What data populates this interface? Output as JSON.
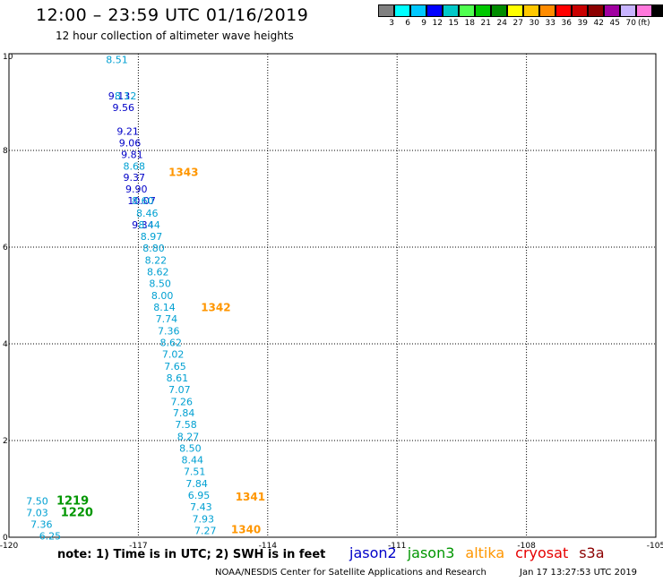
{
  "header": {
    "title": "12:00 – 23:59 UTC 01/16/2019",
    "subtitle": "12 hour collection of altimeter wave heights"
  },
  "legend": {
    "colors": [
      "#808080",
      "#00ffff",
      "#00c8ff",
      "#0000ff",
      "#00c8c8",
      "#50ff50",
      "#00c800",
      "#008c00",
      "#ffff00",
      "#ffc800",
      "#ff8c00",
      "#ff0000",
      "#c80000",
      "#8c0000",
      "#a000a0",
      "#c8b4ff",
      "#ff78dc",
      "#000000"
    ],
    "labels": [
      "3",
      "6",
      "9",
      "12",
      "15",
      "18",
      "21",
      "24",
      "27",
      "30",
      "33",
      "36",
      "39",
      "42",
      "45",
      "70",
      "(ft)"
    ]
  },
  "chart_data": {
    "type": "scatter",
    "xlim": [
      -120,
      -105
    ],
    "ylim": [
      0,
      10
    ],
    "x_ticks": [
      "-120",
      "-117",
      "-114",
      "-111",
      "-108",
      "-105"
    ],
    "y_ticks": [
      "0",
      "2",
      "4",
      "6",
      "8",
      "10"
    ],
    "grid": true,
    "series": [
      {
        "name": "jason2",
        "color": "#0000c8",
        "points": [
          {
            "x": -117.7,
            "y": 9.13,
            "label": "9.13"
          },
          {
            "x": -117.6,
            "y": 8.89,
            "label": "9.56"
          },
          {
            "x": -117.5,
            "y": 8.4,
            "label": "9.21"
          },
          {
            "x": -117.45,
            "y": 8.16,
            "label": "9.06"
          },
          {
            "x": -117.4,
            "y": 7.92,
            "label": "9.81"
          },
          {
            "x": -117.35,
            "y": 7.44,
            "label": "9.37"
          },
          {
            "x": -117.3,
            "y": 7.2,
            "label": "9.90"
          },
          {
            "x": -117.25,
            "y": 6.96,
            "label": "10.07"
          },
          {
            "x": -117.15,
            "y": 6.46,
            "label": "9.34"
          }
        ]
      },
      {
        "name": "jason3",
        "color": "#009600",
        "points": [
          {
            "x": -118.9,
            "y": 0.75,
            "label": "1219"
          },
          {
            "x": -118.8,
            "y": 0.51,
            "label": "1220"
          }
        ]
      },
      {
        "name": "altika",
        "color": "#ff9600",
        "points": [
          {
            "x": -116.3,
            "y": 7.55,
            "label": "1343"
          },
          {
            "x": -115.55,
            "y": 4.75,
            "label": "1342"
          },
          {
            "x": -114.75,
            "y": 0.83,
            "label": "1341"
          },
          {
            "x": -114.85,
            "y": 0.16,
            "label": "1340"
          }
        ]
      },
      {
        "name": "light",
        "color": "#00a0d2",
        "points": [
          {
            "x": -117.75,
            "y": 9.88,
            "label": "8.51"
          },
          {
            "x": -117.55,
            "y": 9.13,
            "label": "8.12"
          },
          {
            "x": -117.35,
            "y": 7.68,
            "label": "8.68"
          },
          {
            "x": -117.15,
            "y": 6.96,
            "label": "8.60"
          },
          {
            "x": -117.05,
            "y": 6.7,
            "label": "8.46"
          },
          {
            "x": -117.0,
            "y": 6.46,
            "label": "8.44"
          },
          {
            "x": -116.95,
            "y": 6.22,
            "label": "8.97"
          },
          {
            "x": -116.9,
            "y": 5.98,
            "label": "8.80"
          },
          {
            "x": -116.85,
            "y": 5.73,
            "label": "8.22"
          },
          {
            "x": -116.8,
            "y": 5.49,
            "label": "8.62"
          },
          {
            "x": -116.75,
            "y": 5.25,
            "label": "8.50"
          },
          {
            "x": -116.7,
            "y": 5.0,
            "label": "8.00"
          },
          {
            "x": -116.65,
            "y": 4.76,
            "label": "8.14"
          },
          {
            "x": -116.6,
            "y": 4.52,
            "label": "7.74"
          },
          {
            "x": -116.55,
            "y": 4.27,
            "label": "7.36"
          },
          {
            "x": -116.5,
            "y": 4.03,
            "label": "8.62"
          },
          {
            "x": -116.45,
            "y": 3.79,
            "label": "7.02"
          },
          {
            "x": -116.4,
            "y": 3.54,
            "label": "7.65"
          },
          {
            "x": -116.35,
            "y": 3.3,
            "label": "8.61"
          },
          {
            "x": -116.3,
            "y": 3.06,
            "label": "7.07"
          },
          {
            "x": -116.25,
            "y": 2.81,
            "label": "7.26"
          },
          {
            "x": -116.2,
            "y": 2.57,
            "label": "7.84"
          },
          {
            "x": -116.15,
            "y": 2.33,
            "label": "7.58"
          },
          {
            "x": -116.1,
            "y": 2.08,
            "label": "8.27"
          },
          {
            "x": -116.05,
            "y": 1.84,
            "label": "8.50"
          },
          {
            "x": -116.0,
            "y": 1.6,
            "label": "8.44"
          },
          {
            "x": -115.95,
            "y": 1.36,
            "label": "7.51"
          },
          {
            "x": -115.9,
            "y": 1.11,
            "label": "7.84"
          },
          {
            "x": -115.85,
            "y": 0.87,
            "label": "6.95"
          },
          {
            "x": -115.8,
            "y": 0.63,
            "label": "7.43"
          },
          {
            "x": -115.75,
            "y": 0.38,
            "label": "7.93"
          },
          {
            "x": -115.7,
            "y": 0.14,
            "label": "7.27"
          },
          {
            "x": -119.6,
            "y": 0.75,
            "label": "7.50"
          },
          {
            "x": -119.6,
            "y": 0.51,
            "label": "7.03"
          },
          {
            "x": -119.5,
            "y": 0.27,
            "label": "7.36"
          },
          {
            "x": -119.3,
            "y": 0.03,
            "label": "6.25"
          }
        ]
      }
    ]
  },
  "note": "note: 1) Time is in UTC; 2) SWH is in feet",
  "satellites": [
    {
      "name": "jason2",
      "color": "#0000c8"
    },
    {
      "name": "jason3",
      "color": "#009600"
    },
    {
      "name": "altika",
      "color": "#ff9600"
    },
    {
      "name": "cryosat",
      "color": "#e60000"
    },
    {
      "name": "s3a",
      "color": "#8c0000"
    }
  ],
  "credit": "NOAA/NESDIS Center for Satellite Applications and Research",
  "stamp": "Jan 17 13:27:53 UTC 2019"
}
